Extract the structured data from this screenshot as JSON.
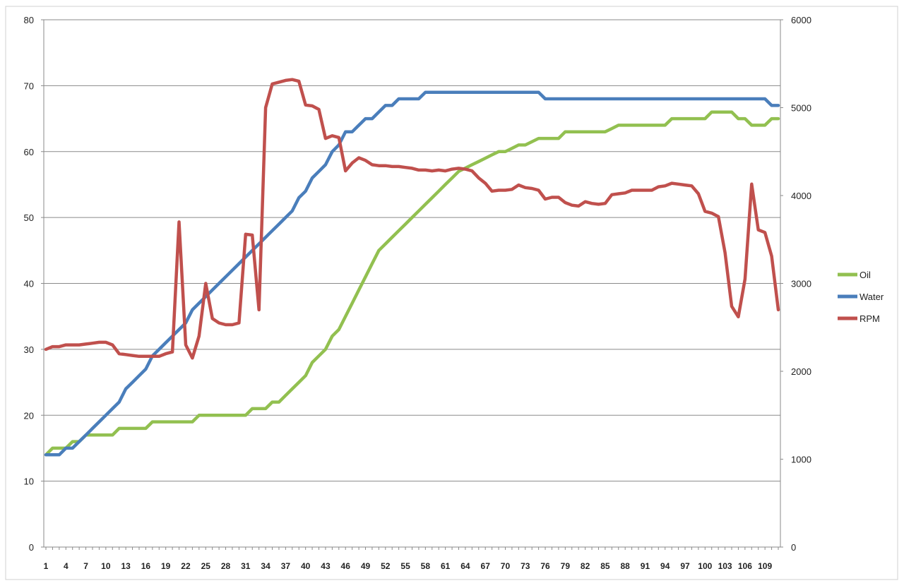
{
  "chart_data": {
    "type": "line",
    "title": "",
    "xlabel": "",
    "ylabel": "",
    "x": [
      1,
      2,
      3,
      4,
      5,
      6,
      7,
      8,
      9,
      10,
      11,
      12,
      13,
      14,
      15,
      16,
      17,
      18,
      19,
      20,
      21,
      22,
      23,
      24,
      25,
      26,
      27,
      28,
      29,
      30,
      31,
      32,
      33,
      34,
      35,
      36,
      37,
      38,
      39,
      40,
      41,
      42,
      43,
      44,
      45,
      46,
      47,
      48,
      49,
      50,
      51,
      52,
      53,
      54,
      55,
      56,
      57,
      58,
      59,
      60,
      61,
      62,
      63,
      64,
      65,
      66,
      67,
      68,
      69,
      70,
      71,
      72,
      73,
      74,
      75,
      76,
      77,
      78,
      79,
      80,
      81,
      82,
      83,
      84,
      85,
      86,
      87,
      88,
      89,
      90,
      91,
      92,
      93,
      94,
      95,
      96,
      97,
      98,
      99,
      100,
      101,
      102,
      103,
      104,
      105,
      106,
      107,
      108,
      109,
      110,
      111
    ],
    "x_tick_labels": [
      "1",
      "4",
      "7",
      "10",
      "13",
      "16",
      "19",
      "22",
      "25",
      "28",
      "31",
      "34",
      "37",
      "40",
      "43",
      "46",
      "49",
      "52",
      "55",
      "58",
      "61",
      "64",
      "67",
      "70",
      "73",
      "76",
      "79",
      "82",
      "85",
      "88",
      "91",
      "94",
      "97",
      "100",
      "103",
      "106",
      "109"
    ],
    "ylim_left": [
      0,
      80
    ],
    "yticks_left": [
      0,
      10,
      20,
      30,
      40,
      50,
      60,
      70,
      80
    ],
    "ylim_right": [
      0,
      6000
    ],
    "yticks_right": [
      0,
      1000,
      2000,
      3000,
      4000,
      5000,
      6000
    ],
    "grid": true,
    "legend_position": "right",
    "series": [
      {
        "name": "Oil",
        "axis": "left",
        "color": "#92c050",
        "values": [
          14,
          15,
          15,
          15,
          16,
          16,
          17,
          17,
          17,
          17,
          17,
          18,
          18,
          18,
          18,
          18,
          19,
          19,
          19,
          19,
          19,
          19,
          19,
          20,
          20,
          20,
          20,
          20,
          20,
          20,
          20,
          21,
          21,
          21,
          22,
          22,
          23,
          24,
          25,
          26,
          28,
          29,
          30,
          32,
          33,
          35,
          37,
          39,
          41,
          43,
          45,
          46,
          47,
          48,
          49,
          50,
          51,
          52,
          53,
          54,
          55,
          56,
          57,
          57.5,
          58,
          58.5,
          59,
          59.5,
          60,
          60,
          60.5,
          61,
          61,
          61.5,
          62,
          62,
          62,
          62,
          63,
          63,
          63,
          63,
          63,
          63,
          63,
          63.5,
          64,
          64,
          64,
          64,
          64,
          64,
          64,
          64,
          65,
          65,
          65,
          65,
          65,
          65,
          66,
          66,
          66,
          66,
          65,
          65,
          64,
          64,
          64,
          65,
          65
        ]
      },
      {
        "name": "Water",
        "axis": "left",
        "color": "#4a7ebb",
        "values": [
          14,
          14,
          14,
          15,
          15,
          16,
          17,
          18,
          19,
          20,
          21,
          22,
          24,
          25,
          26,
          27,
          29,
          30,
          31,
          32,
          33,
          34,
          36,
          37,
          38,
          39,
          40,
          41,
          42,
          43,
          44,
          45,
          46,
          47,
          48,
          49,
          50,
          51,
          53,
          54,
          56,
          57,
          58,
          60,
          61,
          63,
          63,
          64,
          65,
          65,
          66,
          67,
          67,
          68,
          68,
          68,
          68,
          69,
          69,
          69,
          69,
          69,
          69,
          69,
          69,
          69,
          69,
          69,
          69,
          69,
          69,
          69,
          69,
          69,
          69,
          68,
          68,
          68,
          68,
          68,
          68,
          68,
          68,
          68,
          68,
          68,
          68,
          68,
          68,
          68,
          68,
          68,
          68,
          68,
          68,
          68,
          68,
          68,
          68,
          68,
          68,
          68,
          68,
          68,
          68,
          68,
          68,
          68,
          68,
          67,
          67
        ]
      },
      {
        "name": "RPM",
        "axis": "right",
        "color": "#c0504d",
        "values": [
          2250,
          2280,
          2280,
          2300,
          2300,
          2300,
          2310,
          2320,
          2330,
          2330,
          2300,
          2200,
          2190,
          2180,
          2170,
          2170,
          2170,
          2170,
          2200,
          2220,
          3700,
          2300,
          2150,
          2400,
          3000,
          2600,
          2550,
          2530,
          2530,
          2550,
          3560,
          3550,
          2700,
          5000,
          5270,
          5290,
          5310,
          5320,
          5300,
          5030,
          5020,
          4980,
          4650,
          4680,
          4660,
          4280,
          4370,
          4430,
          4400,
          4350,
          4340,
          4340,
          4330,
          4330,
          4320,
          4310,
          4290,
          4290,
          4280,
          4290,
          4280,
          4300,
          4310,
          4300,
          4280,
          4200,
          4140,
          4050,
          4060,
          4060,
          4070,
          4120,
          4090,
          4080,
          4060,
          3960,
          3980,
          3980,
          3920,
          3890,
          3880,
          3930,
          3910,
          3900,
          3910,
          4010,
          4020,
          4030,
          4060,
          4060,
          4060,
          4060,
          4100,
          4110,
          4140,
          4130,
          4120,
          4110,
          4020,
          3820,
          3800,
          3760,
          3350,
          2740,
          2620,
          3050,
          4130,
          3610,
          3580,
          3310,
          2700
        ]
      }
    ]
  }
}
